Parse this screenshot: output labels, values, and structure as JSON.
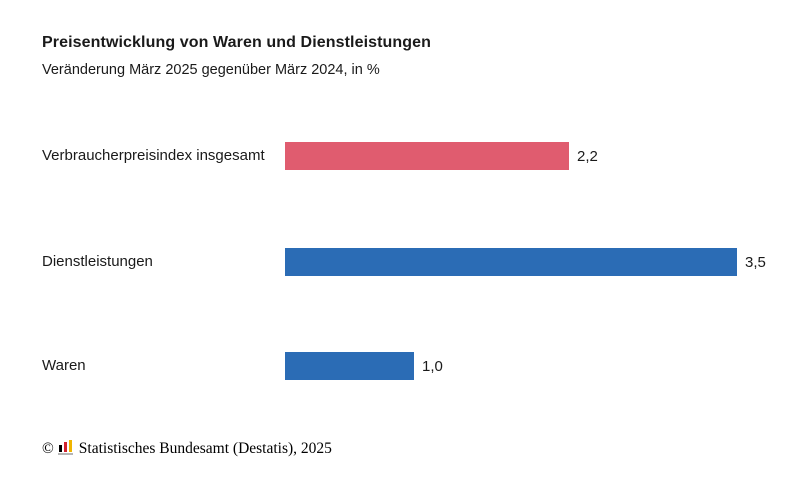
{
  "chart_data": {
    "type": "bar",
    "orientation": "horizontal",
    "title": "Preisentwicklung von Waren und Dienstleistungen",
    "subtitle": "Veränderung März 2025 gegenüber März 2024, in %",
    "categories": [
      "Verbraucherpreisindex insgesamt",
      "Dienstleistungen",
      "Waren"
    ],
    "values": [
      2.2,
      3.5,
      1.0
    ],
    "value_labels": [
      "2,2",
      "3,5",
      "1,0"
    ],
    "bar_colors": [
      "#e05c6f",
      "#2b6cb5",
      "#2b6cb5"
    ],
    "xlim": [
      0,
      3.5
    ],
    "unit": "%",
    "grid": false,
    "legend": false
  },
  "footer": {
    "copyright": "©",
    "source": "Statistisches Bundesamt (Destatis), 2025"
  },
  "colors": {
    "accent_red": "#e05c6f",
    "accent_blue": "#2b6cb5",
    "text": "#1a1a1a",
    "logo_black": "#000000",
    "logo_red": "#d2232f",
    "logo_gold": "#f0b500",
    "logo_baseline": "#b5b5b5"
  }
}
